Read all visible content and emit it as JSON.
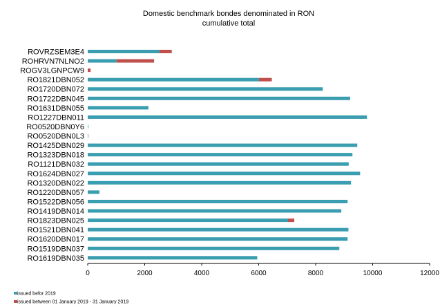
{
  "chart_data": {
    "type": "bar",
    "orientation": "horizontal",
    "stacked": true,
    "title": "Domestic benchmark bondes denominated in RON",
    "subtitle": "cumulative total",
    "categories": [
      "ROVRZSEM3E4",
      "ROHRVN7NLNO2",
      "ROGV3LGNPCW9",
      "RO1821DBN052",
      "RO1720DBN072",
      "RO1722DBN045",
      "RO1631DBN055",
      "RO1227DBN011",
      "RO0520DBN0Y6",
      "RO0520DBN0L3",
      "RO1425DBN029",
      "RO1323DBN018",
      "RO1121DBN032",
      "RO1624DBN027",
      "RO1320DBN022",
      "RO1220DBN057",
      "RO1522DBN056",
      "RO1419DBN014",
      "RO1823DBN025",
      "RO1521DBN041",
      "RO1620DBN017",
      "RO1519DBN037",
      "RO1619DBN035"
    ],
    "series": [
      {
        "name": "issued befor 2019",
        "color": "#3a9db0",
        "values": [
          2520,
          1010,
          0,
          6010,
          8250,
          9210,
          2130,
          9800,
          10,
          10,
          9460,
          9290,
          9160,
          9560,
          9240,
          410,
          9120,
          8900,
          7030,
          9150,
          9120,
          8830,
          5950
        ]
      },
      {
        "name": "issued between 01 January 2019 - 31 January 2019",
        "color": "#c0504d",
        "values": [
          430,
          1320,
          100,
          450,
          0,
          0,
          0,
          0,
          0,
          0,
          0,
          0,
          0,
          0,
          0,
          0,
          0,
          0,
          220,
          0,
          0,
          0,
          0
        ]
      }
    ],
    "xlim": [
      0,
      12000
    ],
    "xticks": [
      "0",
      "2000",
      "4000",
      "6000",
      "8000",
      "10000",
      "12000"
    ],
    "xticks_values": [
      0,
      2000,
      4000,
      6000,
      8000,
      10000,
      12000
    ],
    "grid": false,
    "legend_position": "bottom-left"
  }
}
